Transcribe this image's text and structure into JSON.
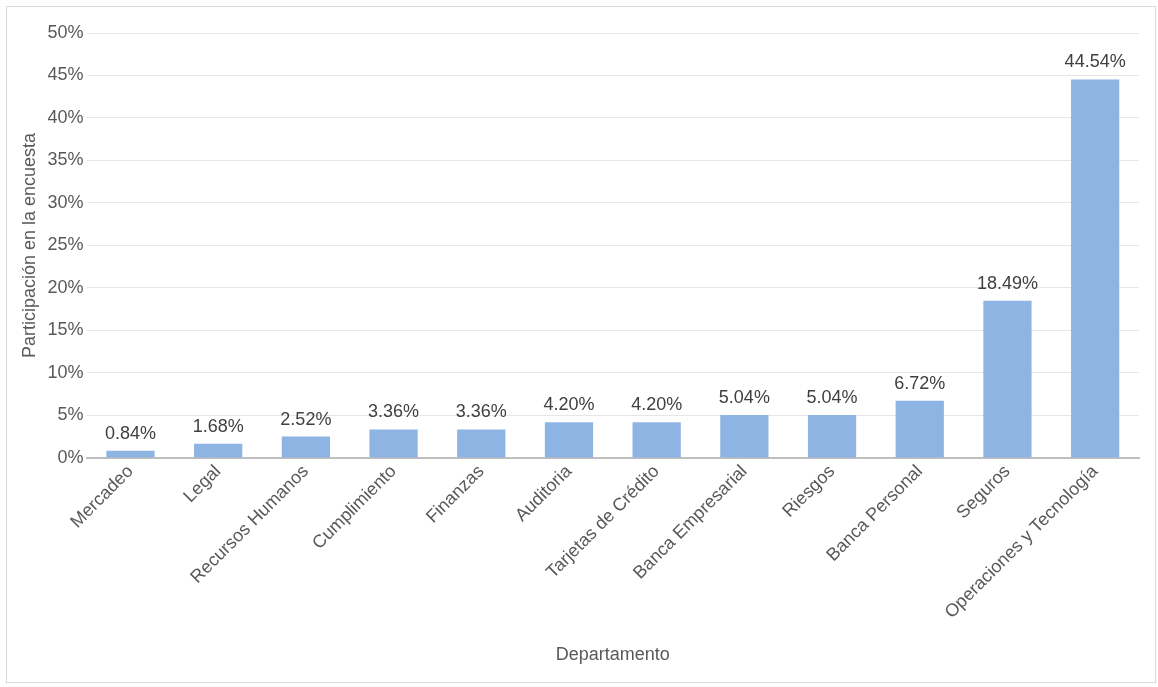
{
  "chart_data": {
    "type": "bar",
    "xlabel": "Departamento",
    "ylabel": "Participación en la encuesta",
    "categories": [
      "Mercadeo",
      "Legal",
      "Recursos Humanos",
      "Cumplimiento",
      "Finanzas",
      "Auditoria",
      "Tarjetas de Crédito",
      "Banca Empresarial",
      "Riesgos",
      "Banca Personal",
      "Seguros",
      "Operaciones y Tecnología"
    ],
    "values": [
      0.84,
      1.68,
      2.52,
      3.36,
      3.36,
      4.2,
      4.2,
      5.04,
      5.04,
      6.72,
      18.49,
      44.54
    ],
    "value_labels": [
      "0.84%",
      "1.68%",
      "2.52%",
      "3.36%",
      "3.36%",
      "4.20%",
      "4.20%",
      "5.04%",
      "5.04%",
      "6.72%",
      "18.49%",
      "44.54%"
    ],
    "color": "#8db4e2",
    "ylim": [
      0,
      50
    ],
    "yticks": [
      {
        "value": 0,
        "label": "0%"
      },
      {
        "value": 5,
        "label": "5%"
      },
      {
        "value": 10,
        "label": "10%"
      },
      {
        "value": 15,
        "label": "15%"
      },
      {
        "value": 20,
        "label": "20%"
      },
      {
        "value": 25,
        "label": "25%"
      },
      {
        "value": 30,
        "label": "30%"
      },
      {
        "value": 35,
        "label": "35%"
      },
      {
        "value": 40,
        "label": "40%"
      },
      {
        "value": 45,
        "label": "45%"
      },
      {
        "value": 50,
        "label": "50%"
      }
    ],
    "grid": "y",
    "legend": false
  }
}
